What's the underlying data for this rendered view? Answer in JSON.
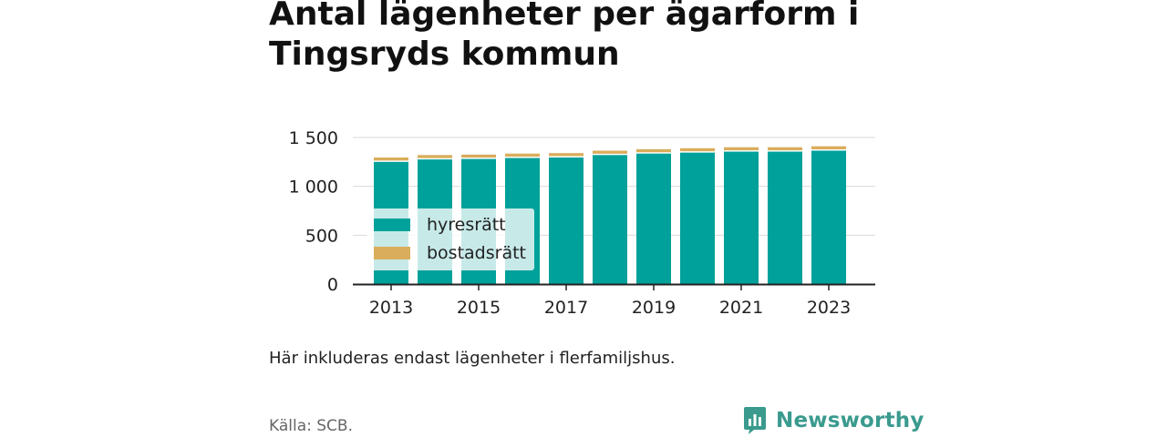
{
  "title_line1": "Antal lägenheter per ägarform i",
  "title_line2": "Tingsryds kommun",
  "note": "Här inkluderas endast lägenheter i flerfamiljshus.",
  "source": "Källa: SCB.",
  "brand": {
    "name": "Newsworthy",
    "logo_icon": "newsworthy-logo-icon",
    "color": "#3a9a8e"
  },
  "chart_data": {
    "type": "bar",
    "stacked": true,
    "categories": [
      "2013",
      "2014",
      "2015",
      "2016",
      "2017",
      "2018",
      "2019",
      "2020",
      "2021",
      "2022",
      "2023"
    ],
    "x_tick_labels": [
      "2013",
      "2015",
      "2017",
      "2019",
      "2021",
      "2023"
    ],
    "y_tick_labels": [
      "0",
      "500",
      "1 000",
      "1 500"
    ],
    "y_ticks": [
      0,
      500,
      1000,
      1500
    ],
    "ylim": [
      0,
      1500
    ],
    "grid": true,
    "legend_position": "bottom-left",
    "series": [
      {
        "name": "hyresrätt",
        "color": "#00a19a",
        "values": [
          1250,
          1275,
          1280,
          1290,
          1295,
          1320,
          1335,
          1345,
          1355,
          1355,
          1365
        ]
      },
      {
        "name": "bostadsrätt",
        "color": "#d9ad5b",
        "values": [
          45,
          45,
          45,
          45,
          45,
          45,
          45,
          45,
          45,
          45,
          45
        ]
      }
    ]
  }
}
